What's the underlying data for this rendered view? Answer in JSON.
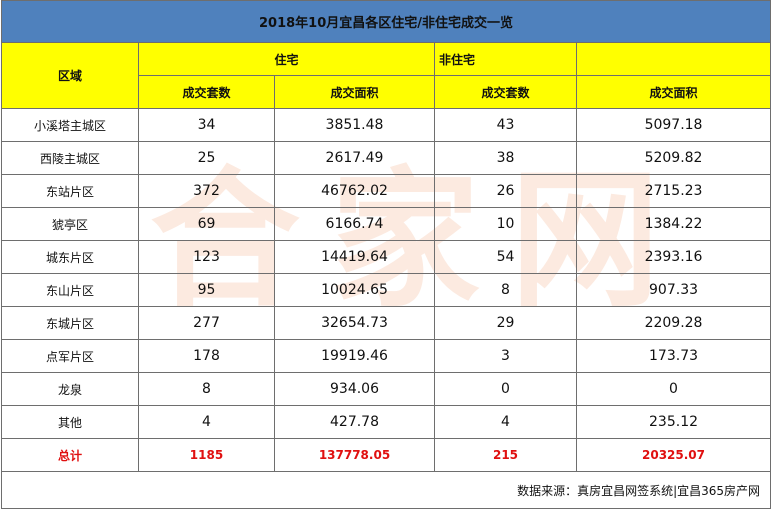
{
  "title": "2018年10月宜昌各区住宅/非住宅成交一览",
  "headers": {
    "region": "区域",
    "residential": "住宅",
    "non_residential": "非住宅",
    "count": "成交套数",
    "area": "成交面积"
  },
  "rows": [
    {
      "region": "小溪塔主城区",
      "res_count": "34",
      "res_area": "3851.48",
      "non_count": "43",
      "non_area": "5097.18"
    },
    {
      "region": "西陵主城区",
      "res_count": "25",
      "res_area": "2617.49",
      "non_count": "38",
      "non_area": "5209.82"
    },
    {
      "region": "东站片区",
      "res_count": "372",
      "res_area": "46762.02",
      "non_count": "26",
      "non_area": "2715.23"
    },
    {
      "region": "猇亭区",
      "res_count": "69",
      "res_area": "6166.74",
      "non_count": "10",
      "non_area": "1384.22"
    },
    {
      "region": "城东片区",
      "res_count": "123",
      "res_area": "14419.64",
      "non_count": "54",
      "non_area": "2393.16"
    },
    {
      "region": "东山片区",
      "res_count": "95",
      "res_area": "10024.65",
      "non_count": "8",
      "non_area": "907.33"
    },
    {
      "region": "东城片区",
      "res_count": "277",
      "res_area": "32654.73",
      "non_count": "29",
      "non_area": "2209.28"
    },
    {
      "region": "点军片区",
      "res_count": "178",
      "res_area": "19919.46",
      "non_count": "3",
      "non_area": "173.73"
    },
    {
      "region": "龙泉",
      "res_count": "8",
      "res_area": "934.06",
      "non_count": "0",
      "non_area": "0"
    },
    {
      "region": "其他",
      "res_count": "4",
      "res_area": "427.78",
      "non_count": "4",
      "non_area": "235.12"
    }
  ],
  "total": {
    "label": "总计",
    "res_count": "1185",
    "res_area": "137778.05",
    "non_count": "215",
    "non_area": "20325.07"
  },
  "source": "数据来源：真房宜昌网签系统|宜昌365房产网",
  "watermark": "合家网",
  "colors": {
    "title_bg": "#4f81bd",
    "header_bg": "#ffff00",
    "total_text": "#e01010",
    "watermark": "#fbe3d6"
  }
}
